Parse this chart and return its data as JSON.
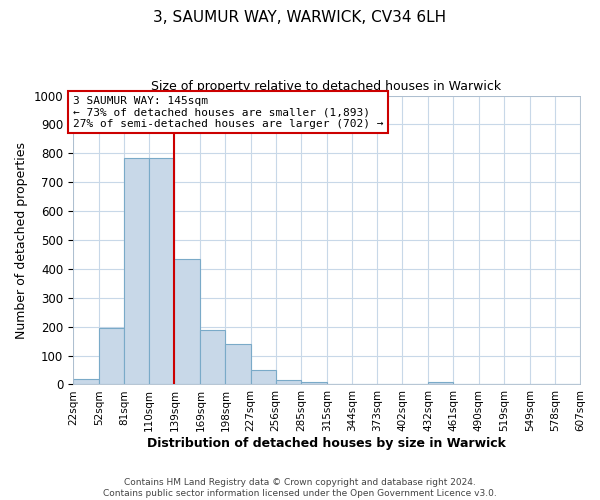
{
  "title": "3, SAUMUR WAY, WARWICK, CV34 6LH",
  "subtitle": "Size of property relative to detached houses in Warwick",
  "xlabel": "Distribution of detached houses by size in Warwick",
  "ylabel": "Number of detached properties",
  "bar_color": "#c8d8e8",
  "bar_edge_color": "#7aaac8",
  "bins": [
    "22sqm",
    "52sqm",
    "81sqm",
    "110sqm",
    "139sqm",
    "169sqm",
    "198sqm",
    "227sqm",
    "256sqm",
    "285sqm",
    "315sqm",
    "344sqm",
    "373sqm",
    "402sqm",
    "432sqm",
    "461sqm",
    "490sqm",
    "519sqm",
    "549sqm",
    "578sqm",
    "607sqm"
  ],
  "values": [
    20,
    195,
    785,
    785,
    435,
    190,
    140,
    50,
    15,
    10,
    0,
    0,
    0,
    0,
    10,
    0,
    0,
    0,
    0,
    0
  ],
  "ylim": [
    0,
    1000
  ],
  "annotation_title": "3 SAUMUR WAY: 145sqm",
  "annotation_line1": "← 73% of detached houses are smaller (1,893)",
  "annotation_line2": "27% of semi-detached houses are larger (702) →",
  "vline_x": 139,
  "annotation_box_facecolor": "#ffffff",
  "annotation_box_edgecolor": "#cc0000",
  "vline_color": "#cc0000",
  "footer1": "Contains HM Land Registry data © Crown copyright and database right 2024.",
  "footer2": "Contains public sector information licensed under the Open Government Licence v3.0.",
  "grid_color": "#c8d8e8",
  "background_color": "#ffffff",
  "title_fontsize": 11,
  "subtitle_fontsize": 9
}
